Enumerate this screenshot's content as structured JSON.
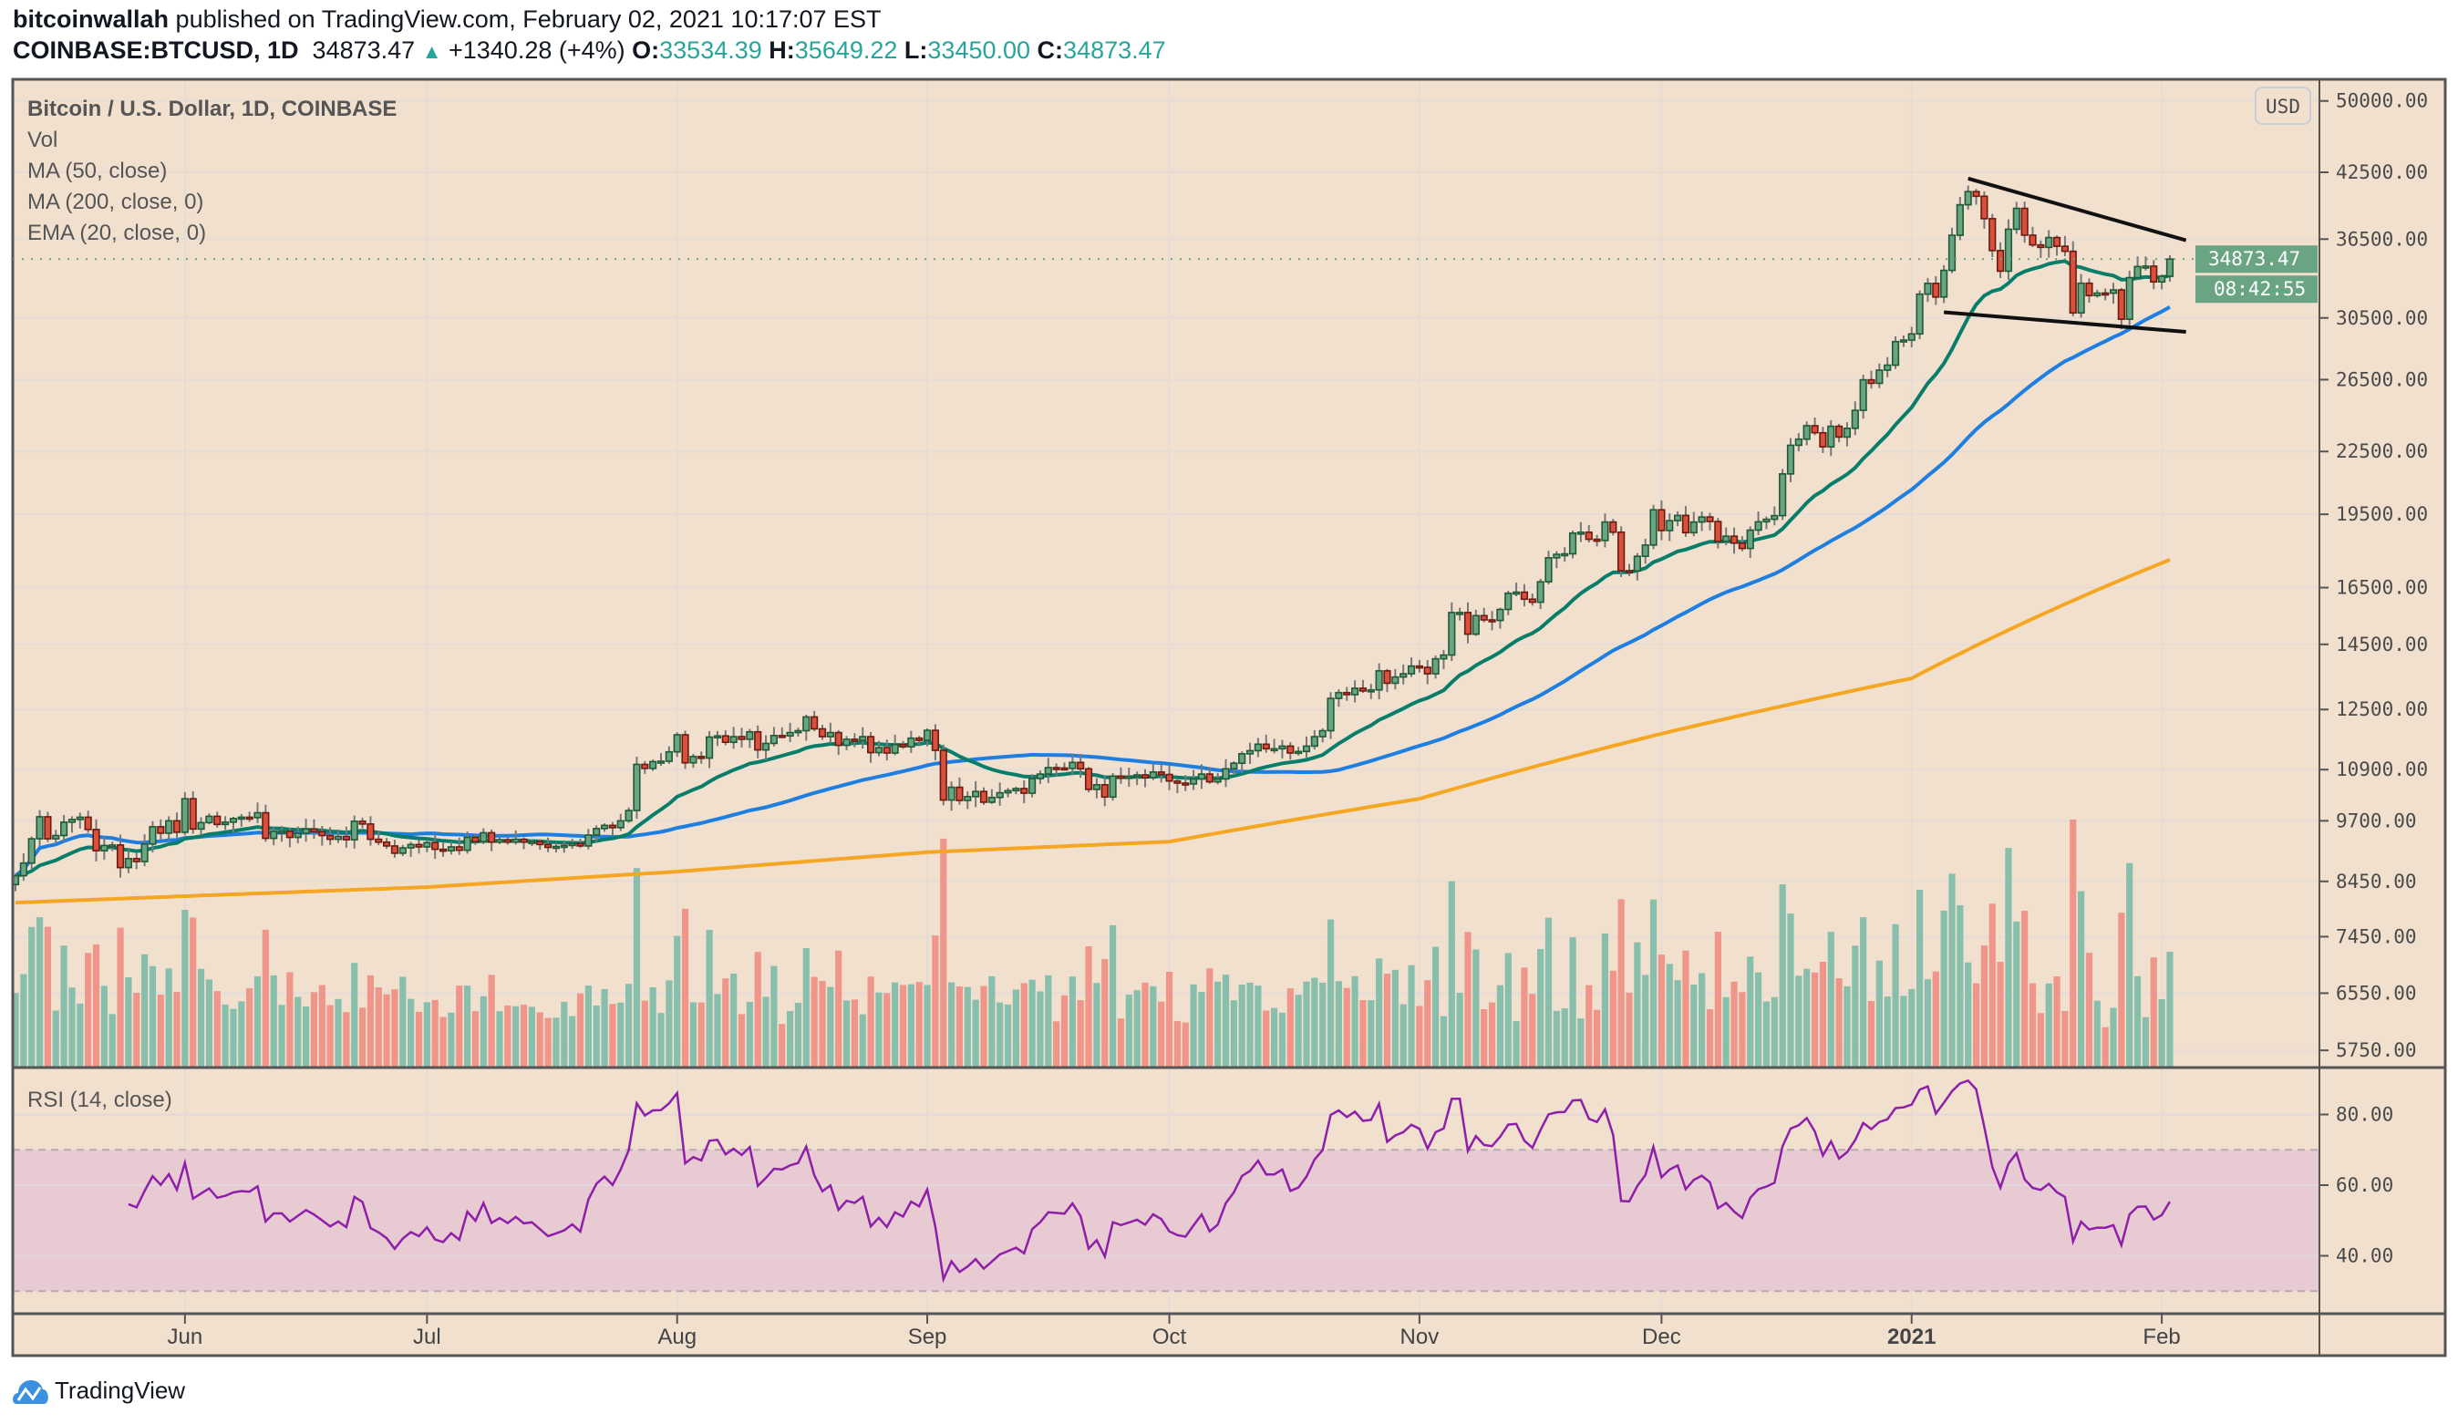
{
  "header": {
    "author": "bitcoinwallah",
    "published": "published on TradingView.com, February 02, 2021 10:17:07 EST",
    "symbol": "COINBASE:BTCUSD, 1D",
    "last": "34873.47",
    "change": "+1340.28 (+4%)",
    "o_label": "O:",
    "o": "33534.39",
    "h_label": "H:",
    "h": "35649.22",
    "l_label": "L:",
    "l": "33450.00",
    "c_label": "C:",
    "c": "34873.47"
  },
  "legend": {
    "title": "Bitcoin / U.S. Dollar, 1D, COINBASE",
    "vol": "Vol",
    "ma50": "MA (50, close)",
    "ma200": "MA (200, close, 0)",
    "ema20": "EMA (20, close, 0)",
    "rsi": "RSI (14, close)"
  },
  "currency_button": "USD",
  "last_price_label": "34873.47",
  "countdown_label": "08:42:55",
  "footer": {
    "brand": "TradingView"
  },
  "colors": {
    "background": "#f2e0cf",
    "up": "#6aa583",
    "up_border": "#1e5a35",
    "down": "#d9503c",
    "down_border": "#6b1a10",
    "vol_up": "#88bfac",
    "vol_down": "#f0958a",
    "ema20": "#087e6a",
    "ma50": "#1e7fe0",
    "ma200": "#f5a623",
    "rsi": "#8e1fa8",
    "rsi_band": "#e8cad3",
    "trendline": "#111111",
    "last_price": "#6aa583"
  },
  "chart_data": [
    {
      "type": "candlestick",
      "scale": "log",
      "grid": true,
      "y_ticks": [
        "50000.00",
        "42500.00",
        "36500.00",
        "30500.00",
        "26500.00",
        "22500.00",
        "19500.00",
        "16500.00",
        "14500.00",
        "12500.00",
        "10900.00",
        "9700.00",
        "8450.00",
        "7450.00",
        "6550.00",
        "5750.00"
      ],
      "x_ticks": [
        {
          "label": "Jun",
          "date": "2020-06-01"
        },
        {
          "label": "Jul",
          "date": "2020-07-01"
        },
        {
          "label": "Aug",
          "date": "2020-08-01"
        },
        {
          "label": "Sep",
          "date": "2020-09-01"
        },
        {
          "label": "Oct",
          "date": "2020-10-01"
        },
        {
          "label": "Nov",
          "date": "2020-11-01"
        },
        {
          "label": "Dec",
          "date": "2020-12-01"
        },
        {
          "label": "2021",
          "date": "2021-01-01"
        },
        {
          "label": "Feb",
          "date": "2021-02-01"
        }
      ],
      "x": [
        "2020-05-11",
        "2020-05-12",
        "2020-05-13",
        "2020-05-14",
        "2020-05-15",
        "2020-05-16",
        "2020-05-17",
        "2020-05-18",
        "2020-05-19",
        "2020-05-20",
        "2020-05-21",
        "2020-05-22",
        "2020-05-23",
        "2020-05-24",
        "2020-05-25",
        "2020-05-26",
        "2020-05-27",
        "2020-05-28",
        "2020-05-29",
        "2020-05-30",
        "2020-05-31",
        "2020-06-01",
        "2020-06-02",
        "2020-06-03",
        "2020-06-04",
        "2020-06-05",
        "2020-06-06",
        "2020-06-07",
        "2020-06-08",
        "2020-06-09",
        "2020-06-10",
        "2020-06-11",
        "2020-06-12",
        "2020-06-13",
        "2020-06-14",
        "2020-06-15",
        "2020-06-16",
        "2020-06-17",
        "2020-06-18",
        "2020-06-19",
        "2020-06-20",
        "2020-06-21",
        "2020-06-22",
        "2020-06-23",
        "2020-06-24",
        "2020-06-25",
        "2020-06-26",
        "2020-06-27",
        "2020-06-28",
        "2020-06-29",
        "2020-06-30",
        "2020-07-01",
        "2020-07-02",
        "2020-07-03",
        "2020-07-04",
        "2020-07-05",
        "2020-07-06",
        "2020-07-07",
        "2020-07-08",
        "2020-07-09",
        "2020-07-10",
        "2020-07-11",
        "2020-07-12",
        "2020-07-13",
        "2020-07-14",
        "2020-07-15",
        "2020-07-16",
        "2020-07-17",
        "2020-07-18",
        "2020-07-19",
        "2020-07-20",
        "2020-07-21",
        "2020-07-22",
        "2020-07-23",
        "2020-07-24",
        "2020-07-25",
        "2020-07-26",
        "2020-07-27",
        "2020-07-28",
        "2020-07-29",
        "2020-07-30",
        "2020-07-31",
        "2020-08-01",
        "2020-08-02",
        "2020-08-03",
        "2020-08-04",
        "2020-08-05",
        "2020-08-06",
        "2020-08-07",
        "2020-08-08",
        "2020-08-09",
        "2020-08-10",
        "2020-08-11",
        "2020-08-12",
        "2020-08-13",
        "2020-08-14",
        "2020-08-15",
        "2020-08-16",
        "2020-08-17",
        "2020-08-18",
        "2020-08-19",
        "2020-08-20",
        "2020-08-21",
        "2020-08-22",
        "2020-08-23",
        "2020-08-24",
        "2020-08-25",
        "2020-08-26",
        "2020-08-27",
        "2020-08-28",
        "2020-08-29",
        "2020-08-30",
        "2020-08-31",
        "2020-09-01",
        "2020-09-02",
        "2020-09-03",
        "2020-09-04",
        "2020-09-05",
        "2020-09-06",
        "2020-09-07",
        "2020-09-08",
        "2020-09-09",
        "2020-09-10",
        "2020-09-11",
        "2020-09-12",
        "2020-09-13",
        "2020-09-14",
        "2020-09-15",
        "2020-09-16",
        "2020-09-17",
        "2020-09-18",
        "2020-09-19",
        "2020-09-20",
        "2020-09-21",
        "2020-09-22",
        "2020-09-23",
        "2020-09-24",
        "2020-09-25",
        "2020-09-26",
        "2020-09-27",
        "2020-09-28",
        "2020-09-29",
        "2020-09-30",
        "2020-10-01",
        "2020-10-02",
        "2020-10-03",
        "2020-10-04",
        "2020-10-05",
        "2020-10-06",
        "2020-10-07",
        "2020-10-08",
        "2020-10-09",
        "2020-10-10",
        "2020-10-11",
        "2020-10-12",
        "2020-10-13",
        "2020-10-14",
        "2020-10-15",
        "2020-10-16",
        "2020-10-17",
        "2020-10-18",
        "2020-10-19",
        "2020-10-20",
        "2020-10-21",
        "2020-10-22",
        "2020-10-23",
        "2020-10-24",
        "2020-10-25",
        "2020-10-26",
        "2020-10-27",
        "2020-10-28",
        "2020-10-29",
        "2020-10-30",
        "2020-10-31",
        "2020-11-01",
        "2020-11-02",
        "2020-11-03",
        "2020-11-04",
        "2020-11-05",
        "2020-11-06",
        "2020-11-07",
        "2020-11-08",
        "2020-11-09",
        "2020-11-10",
        "2020-11-11",
        "2020-11-12",
        "2020-11-13",
        "2020-11-14",
        "2020-11-15",
        "2020-11-16",
        "2020-11-17",
        "2020-11-18",
        "2020-11-19",
        "2020-11-20",
        "2020-11-21",
        "2020-11-22",
        "2020-11-23",
        "2020-11-24",
        "2020-11-25",
        "2020-11-26",
        "2020-11-27",
        "2020-11-28",
        "2020-11-29",
        "2020-11-30",
        "2020-12-01",
        "2020-12-02",
        "2020-12-03",
        "2020-12-04",
        "2020-12-05",
        "2020-12-06",
        "2020-12-07",
        "2020-12-08",
        "2020-12-09",
        "2020-12-10",
        "2020-12-11",
        "2020-12-12",
        "2020-12-13",
        "2020-12-14",
        "2020-12-15",
        "2020-12-16",
        "2020-12-17",
        "2020-12-18",
        "2020-12-19",
        "2020-12-20",
        "2020-12-21",
        "2020-12-22",
        "2020-12-23",
        "2020-12-24",
        "2020-12-25",
        "2020-12-26",
        "2020-12-27",
        "2020-12-28",
        "2020-12-29",
        "2020-12-30",
        "2020-12-31",
        "2021-01-01",
        "2021-01-02",
        "2021-01-03",
        "2021-01-04",
        "2021-01-05",
        "2021-01-06",
        "2021-01-07",
        "2021-01-08",
        "2021-01-09",
        "2021-01-10",
        "2021-01-11",
        "2021-01-12",
        "2021-01-13",
        "2021-01-14",
        "2021-01-15",
        "2021-01-16",
        "2021-01-17",
        "2021-01-18",
        "2021-01-19",
        "2021-01-20",
        "2021-01-21",
        "2021-01-22",
        "2021-01-23",
        "2021-01-24",
        "2021-01-25",
        "2021-01-26",
        "2021-01-27",
        "2021-01-28",
        "2021-01-29",
        "2021-01-30",
        "2021-01-31",
        "2021-02-01",
        "2021-02-02"
      ],
      "close": [
        8560,
        8810,
        9310,
        9790,
        9310,
        9380,
        9670,
        9730,
        9780,
        9510,
        9060,
        9170,
        9180,
        8720,
        8900,
        8840,
        9200,
        9570,
        9430,
        9700,
        9450,
        10200,
        9520,
        9660,
        9800,
        9620,
        9670,
        9750,
        9780,
        9770,
        9880,
        9320,
        9470,
        9470,
        9340,
        9430,
        9520,
        9460,
        9380,
        9300,
        9360,
        9290,
        9690,
        9630,
        9300,
        9240,
        9160,
        9010,
        9120,
        9190,
        9140,
        9230,
        9090,
        9060,
        9140,
        9070,
        9340,
        9250,
        9440,
        9240,
        9290,
        9240,
        9300,
        9240,
        9250,
        9190,
        9130,
        9150,
        9170,
        9210,
        9160,
        9390,
        9530,
        9600,
        9550,
        9700,
        9930,
        11030,
        10930,
        11100,
        11110,
        11350,
        11800,
        11070,
        11230,
        11190,
        11740,
        11770,
        11600,
        11750,
        11680,
        11880,
        11400,
        11570,
        11780,
        11770,
        11860,
        11910,
        12290,
        11960,
        11750,
        11860,
        11520,
        11680,
        11650,
        11750,
        11330,
        11460,
        11320,
        11540,
        11480,
        11710,
        11650,
        11920,
        11390,
        10170,
        10470,
        10160,
        10250,
        10370,
        10120,
        10230,
        10340,
        10390,
        10440,
        10330,
        10680,
        10790,
        10950,
        10940,
        10930,
        11080,
        10920,
        10420,
        10530,
        10240,
        10740,
        10690,
        10730,
        10770,
        10700,
        10840,
        10780,
        10620,
        10570,
        10550,
        10670,
        10790,
        10600,
        10670,
        10920,
        11060,
        11300,
        11380,
        11550,
        11430,
        11430,
        11500,
        11320,
        11360,
        11500,
        11750,
        11910,
        12820,
        12990,
        12930,
        13120,
        13040,
        13070,
        13650,
        13270,
        13460,
        13560,
        13800,
        13760,
        13560,
        14030,
        14150,
        15590,
        15590,
        14840,
        15480,
        15330,
        15310,
        15700,
        16290,
        16330,
        16070,
        15960,
        16720,
        17660,
        17800,
        17820,
        18680,
        18720,
        18420,
        18370,
        19160,
        18720,
        17150,
        17140,
        17720,
        18180,
        19700,
        18790,
        19220,
        19450,
        18700,
        19160,
        19380,
        19180,
        18330,
        18550,
        18260,
        18040,
        18810,
        19170,
        19280,
        19440,
        21380,
        22820,
        23140,
        23860,
        23480,
        22740,
        23830,
        23250,
        23720,
        24710,
        26490,
        26280,
        27080,
        27390,
        28900,
        29000,
        29410,
        32200,
        33000,
        31990,
        33990,
        36820,
        39470,
        40670,
        40240,
        38240,
        35560,
        33930,
        37330,
        39150,
        36830,
        36020,
        35820,
        36630,
        35910,
        35500,
        30850,
        33010,
        32090,
        32280,
        32270,
        32510,
        30410,
        33430,
        34290,
        34320,
        33110,
        33534.39,
        34873.47
      ],
      "ma200": {
        "x": [
          "2020-05-11",
          "2020-06-01",
          "2020-07-01",
          "2020-08-01",
          "2020-09-01",
          "2020-10-01",
          "2020-11-01",
          "2020-12-01",
          "2021-01-01",
          "2021-02-02"
        ],
        "values": [
          8050,
          8170,
          8340,
          8640,
          9030,
          9250,
          10200,
          11830,
          13420,
          17580
        ]
      },
      "trendlines": [
        {
          "from": {
            "x": "2021-01-08",
            "y": 41900
          },
          "to": {
            "x": "2021-02-04",
            "y": 36400
          }
        },
        {
          "from": {
            "x": "2021-01-05",
            "y": 30900
          },
          "to": {
            "x": "2021-02-04",
            "y": 29550
          }
        }
      ]
    },
    {
      "type": "line",
      "y_ticks": [
        "80.00",
        "60.00",
        "40.00"
      ],
      "ylim": [
        22,
        92
      ],
      "band": [
        30,
        70
      ],
      "grid": true
    }
  ]
}
